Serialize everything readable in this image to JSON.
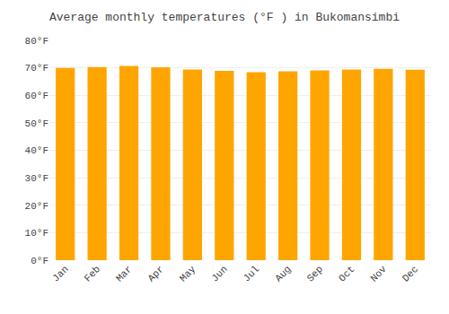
{
  "chart_data": {
    "type": "bar",
    "title": "Average monthly temperatures (°F ) in Bukomansimbi",
    "categories": [
      "Jan",
      "Feb",
      "Mar",
      "Apr",
      "May",
      "Jun",
      "Jul",
      "Aug",
      "Sep",
      "Oct",
      "Nov",
      "Dec"
    ],
    "values": [
      70.0,
      70.3,
      70.7,
      70.2,
      69.4,
      68.9,
      68.4,
      68.7,
      69.1,
      69.4,
      69.6,
      69.3
    ],
    "color": "#FFA500",
    "ylim": [
      0,
      80
    ],
    "yticks": [
      {
        "value": 0,
        "label": "0°F"
      },
      {
        "value": 10,
        "label": "10°F"
      },
      {
        "value": 20,
        "label": "20°F"
      },
      {
        "value": 30,
        "label": "30°F"
      },
      {
        "value": 40,
        "label": "40°F"
      },
      {
        "value": 50,
        "label": "50°F"
      },
      {
        "value": 60,
        "label": "60°F"
      },
      {
        "value": 70,
        "label": "70°F"
      },
      {
        "value": 80,
        "label": "80°F"
      }
    ],
    "grid": true
  }
}
